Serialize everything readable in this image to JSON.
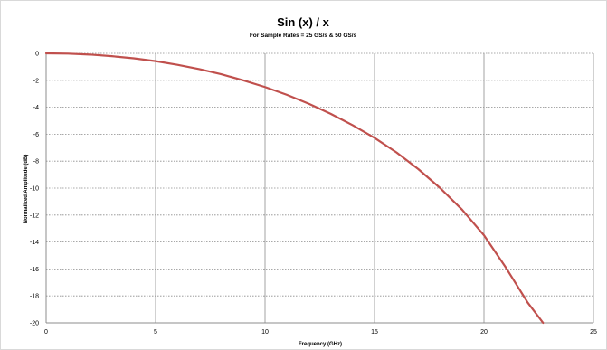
{
  "chart_data": {
    "type": "line",
    "title": "Sin (x) / x",
    "subtitle": "For Sample Rates = 25 GS/s & 50 GS/s",
    "xlabel": "Frequency (GHz)",
    "ylabel": "Normalized Amplitude (dB)",
    "xlim": [
      0,
      25
    ],
    "ylim": [
      -20,
      0
    ],
    "x_ticks": [
      "0",
      "5",
      "10",
      "15",
      "20",
      "25"
    ],
    "y_ticks": [
      "0",
      "-2",
      "-4",
      "-6",
      "-8",
      "-10",
      "-12",
      "-14",
      "-16",
      "-18",
      "-20"
    ],
    "grid": {
      "x_major": true,
      "y_major": true
    },
    "series": [
      {
        "color": "#c0504d",
        "x": [
          0,
          1,
          2,
          3,
          4,
          5,
          6,
          7,
          8,
          9,
          10,
          11,
          12,
          13,
          14,
          15,
          16,
          17,
          18,
          19,
          20,
          21,
          22,
          22.7
        ],
        "y": [
          0,
          -0.02,
          -0.09,
          -0.21,
          -0.37,
          -0.58,
          -0.85,
          -1.17,
          -1.55,
          -2.0,
          -2.5,
          -3.08,
          -3.74,
          -4.49,
          -5.33,
          -6.27,
          -7.35,
          -8.59,
          -10.0,
          -11.6,
          -13.5,
          -15.9,
          -18.5,
          -20.0
        ]
      }
    ]
  }
}
